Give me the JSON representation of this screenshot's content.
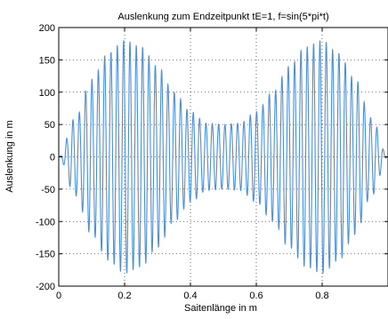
{
  "chart_data": {
    "type": "line",
    "title": "Auslenkung zum Endzeitpunkt tE=1, f=sin(5*pi*t)",
    "xlabel": "Saitenlänge in m",
    "ylabel": "Auslenkung in m",
    "xlim": [
      0,
      1
    ],
    "ylim": [
      -200,
      200
    ],
    "xticks": [
      0,
      0.2,
      0.4,
      0.6,
      0.8
    ],
    "xtick_labels": [
      "0",
      "0.2",
      "0.4",
      "0.6",
      "0.8"
    ],
    "yticks": [
      -200,
      -150,
      -100,
      -50,
      0,
      50,
      100,
      150,
      200
    ],
    "ytick_labels": [
      "-200",
      "-150",
      "-100",
      "-50",
      "0",
      "50",
      "100",
      "150",
      "200"
    ],
    "grid": true,
    "series": [
      {
        "color": "#4a90d9",
        "description_x_samples": [
          0,
          0.05,
          0.1,
          0.15,
          0.2,
          0.25,
          0.3,
          0.35,
          0.4,
          0.45,
          0.5,
          0.55,
          0.6,
          0.65,
          0.7,
          0.75,
          0.8,
          0.85,
          0.9,
          0.95,
          1.0
        ],
        "envelope_amplitude": [
          0,
          60,
          120,
          160,
          180,
          170,
          140,
          100,
          70,
          52,
          50,
          52,
          70,
          100,
          140,
          170,
          180,
          160,
          120,
          60,
          0
        ],
        "oscillations": 52
      }
    ]
  }
}
